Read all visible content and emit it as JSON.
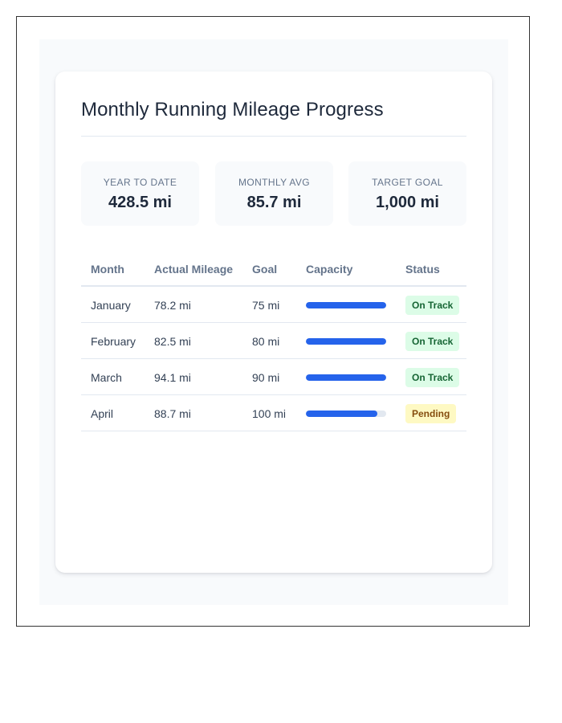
{
  "title": "Monthly Running Mileage Progress",
  "stats": [
    {
      "label": "YEAR TO DATE",
      "value": "428.5 mi"
    },
    {
      "label": "MONTHLY AVG",
      "value": "85.7 mi"
    },
    {
      "label": "TARGET GOAL",
      "value": "1,000 mi"
    }
  ],
  "table": {
    "headers": [
      "Month",
      "Actual Mileage",
      "Goal",
      "Capacity",
      "Status"
    ],
    "rows": [
      {
        "month": "January",
        "actual": "78.2 mi",
        "goal": "75 mi",
        "capacity_pct": 100,
        "status": "On Track",
        "status_kind": "on-track"
      },
      {
        "month": "February",
        "actual": "82.5 mi",
        "goal": "80 mi",
        "capacity_pct": 100,
        "status": "On Track",
        "status_kind": "on-track"
      },
      {
        "month": "March",
        "actual": "94.1 mi",
        "goal": "90 mi",
        "capacity_pct": 100,
        "status": "On Track",
        "status_kind": "on-track"
      },
      {
        "month": "April",
        "actual": "88.7 mi",
        "goal": "100 mi",
        "capacity_pct": 88.7,
        "status": "Pending",
        "status_kind": "pending"
      }
    ]
  },
  "colors": {
    "accent": "#2563eb",
    "on_track_bg": "#dcfce7",
    "on_track_text": "#166534",
    "pending_bg": "#fef9c3",
    "pending_text": "#854d0e"
  }
}
